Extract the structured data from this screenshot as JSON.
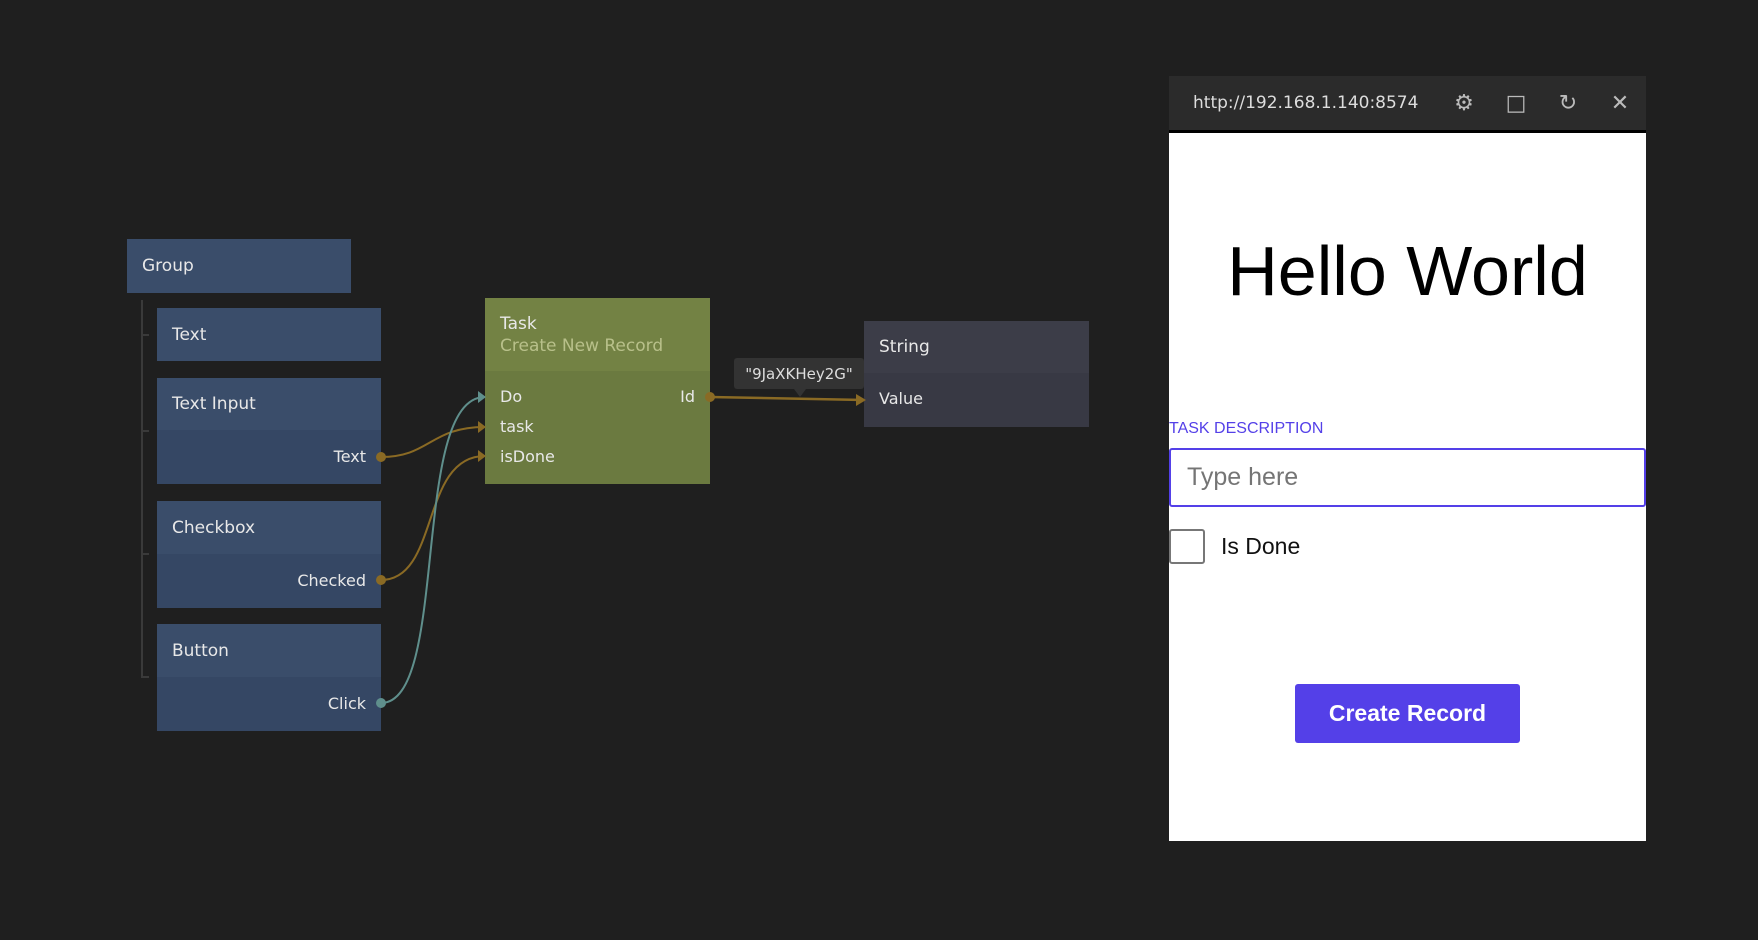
{
  "nodes": {
    "group": {
      "title": "Group"
    },
    "text": {
      "title": "Text"
    },
    "text_input": {
      "title": "Text Input",
      "output": "Text"
    },
    "checkbox": {
      "title": "Checkbox",
      "output": "Checked"
    },
    "button": {
      "title": "Button",
      "output": "Click"
    },
    "task": {
      "title": "Task",
      "subtitle": "Create New Record",
      "inputs": [
        "Do",
        "task",
        "isDone"
      ],
      "output": "Id"
    },
    "string": {
      "title": "String",
      "input": "Value"
    },
    "tooltip": "\"9JaXKHey2G\""
  },
  "colors": {
    "data_wire": "#8a6a24",
    "signal_wire": "#5f8f8c",
    "accent": "#5440e8",
    "task_node": "#6b7a40"
  },
  "preview": {
    "url": "http://192.168.1.140:8574",
    "icons": [
      "bug-icon",
      "inspect-icon",
      "refresh-icon",
      "close-icon"
    ],
    "heading": "Hello World",
    "label": "TASK DESCRIPTION",
    "input_placeholder": "Type here",
    "input_value": "",
    "checkbox_label": "Is Done",
    "checkbox_checked": false,
    "button_label": "Create Record"
  }
}
